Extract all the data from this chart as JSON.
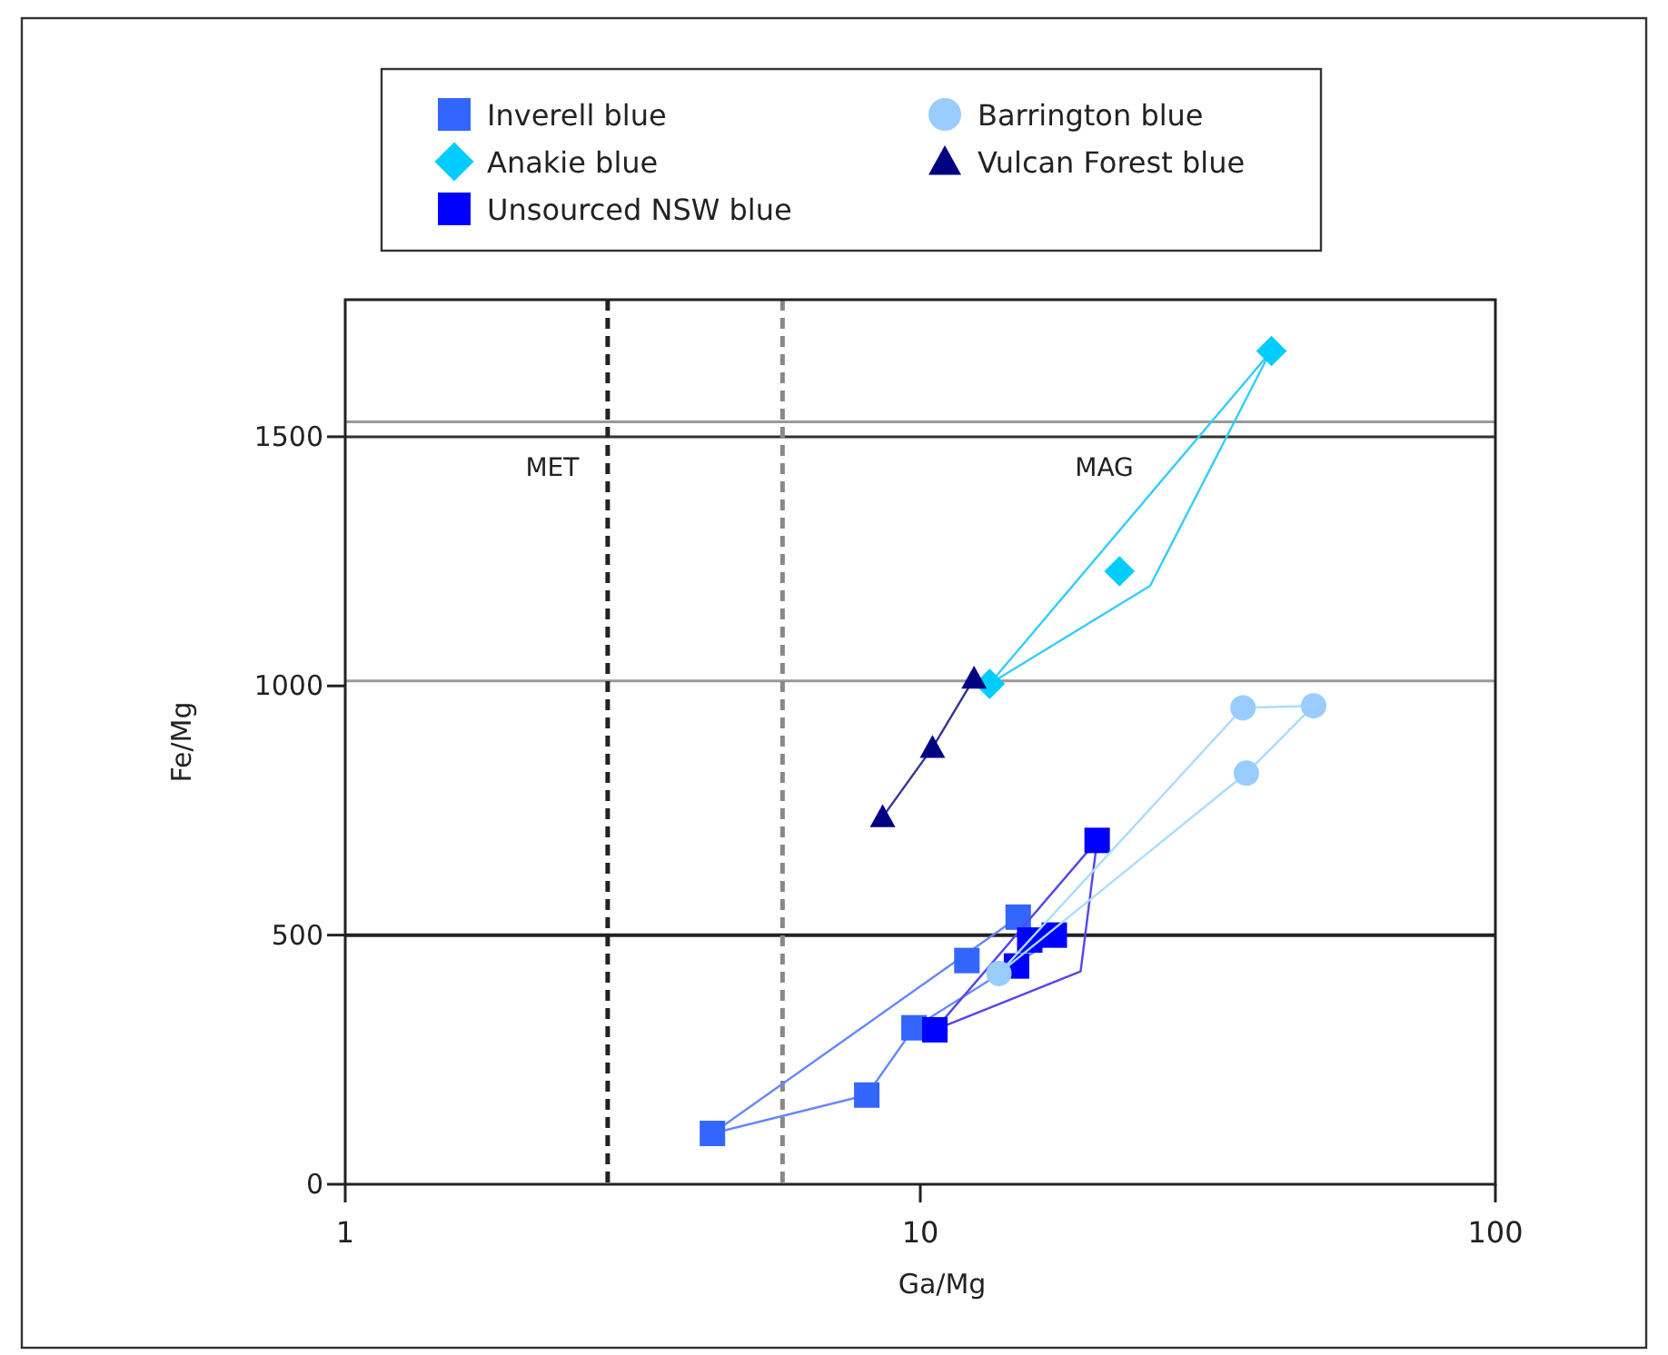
{
  "chart_data": {
    "type": "scatter",
    "xlabel": "Ga/Mg",
    "ylabel": "Fe/Mg",
    "log": "x",
    "xlim": [
      1,
      100
    ],
    "xticks": [
      1,
      10,
      100
    ],
    "ylim": [
      0,
      1775
    ],
    "yticks": [
      0,
      500,
      1000,
      1500
    ],
    "legend": "top",
    "grid": false,
    "annotations": [
      "MET",
      "MAG"
    ],
    "ref_lines": [
      {
        "axis": "y",
        "value": 1530,
        "color": "#999999",
        "line_style": "solid"
      },
      {
        "axis": "y",
        "value": 1500,
        "color": "#333333",
        "line_style": "solid"
      },
      {
        "axis": "y",
        "value": 1010,
        "color": "#999999",
        "line_style": "solid"
      },
      {
        "axis": "y",
        "value": 500,
        "color": "#222222",
        "line_style": "solid"
      },
      {
        "axis": "x",
        "value": 2.86,
        "color": "#222222",
        "line_style": "dashed"
      },
      {
        "axis": "x",
        "value": 5.76,
        "color": "#888888",
        "line_style": "dashed"
      }
    ],
    "series": [
      {
        "type": "line",
        "color": "#6688ff",
        "marker": "none",
        "x": [
          4.35,
          14.8,
          16.5
        ],
        "values": [
          102,
          536,
          480
        ]
      },
      {
        "type": "line",
        "color": "#6688ff",
        "marker": "none",
        "x": [
          4.35,
          8.07,
          9.75,
          16.5
        ],
        "values": [
          102,
          179,
          314,
          480
        ]
      },
      {
        "name": "Inverell blue",
        "color": "#3366ff",
        "marker": "square",
        "x": [
          4.35,
          8.07,
          9.75,
          12.05,
          14.8
        ],
        "values": [
          102,
          179,
          314,
          449,
          536
        ]
      },
      {
        "type": "line",
        "color": "#33ccff",
        "marker": "none",
        "x": [
          13.2,
          40.5
        ],
        "values": [
          1004,
          1668
        ]
      },
      {
        "type": "line",
        "color": "#33ccff",
        "marker": "none",
        "x": [
          13.2,
          25.1,
          40.5
        ],
        "values": [
          1004,
          1201,
          1668
        ]
      },
      {
        "name": "Anakie blue",
        "color": "#00ccff",
        "marker": "diamond",
        "x": [
          40.8,
          22.2,
          13.2
        ],
        "values": [
          1672,
          1230,
          1004
        ]
      },
      {
        "type": "line",
        "color": "#5544ee",
        "marker": "none",
        "x": [
          10.6,
          20.3
        ],
        "values": [
          310,
          690
        ]
      },
      {
        "type": "line",
        "color": "#5544ee",
        "marker": "none",
        "x": [
          10.6,
          19.0,
          20.3
        ],
        "values": [
          310,
          427,
          690
        ]
      },
      {
        "name": "Unsourced NSW blue",
        "color": "#0000ff",
        "marker": "square",
        "x": [
          20.3,
          10.6,
          15.5,
          17.1,
          14.7
        ],
        "values": [
          690,
          310,
          490,
          500,
          438
        ]
      },
      {
        "type": "line",
        "color": "#aaddff",
        "marker": "none",
        "x": [
          13.7,
          36.4,
          48.3
        ],
        "values": [
          423,
          956,
          960
        ]
      },
      {
        "type": "line",
        "color": "#aaddff",
        "marker": "none",
        "x": [
          13.7,
          36.9,
          48.3
        ],
        "values": [
          423,
          825,
          960
        ]
      },
      {
        "name": "Barrington blue",
        "color": "#99ccff",
        "marker": "circle",
        "x": [
          36.4,
          48.3,
          36.9,
          13.7
        ],
        "values": [
          956,
          960,
          825,
          423
        ]
      },
      {
        "type": "line",
        "color": "#333399",
        "marker": "none",
        "x": [
          8.6,
          10.5,
          12.4
        ],
        "values": [
          737,
          876,
          1015
        ]
      },
      {
        "name": "Vulcan Forest blue",
        "color": "#000080",
        "marker": "triangle",
        "x": [
          8.6,
          10.5,
          12.4
        ],
        "values": [
          737,
          876,
          1015
        ]
      }
    ]
  }
}
